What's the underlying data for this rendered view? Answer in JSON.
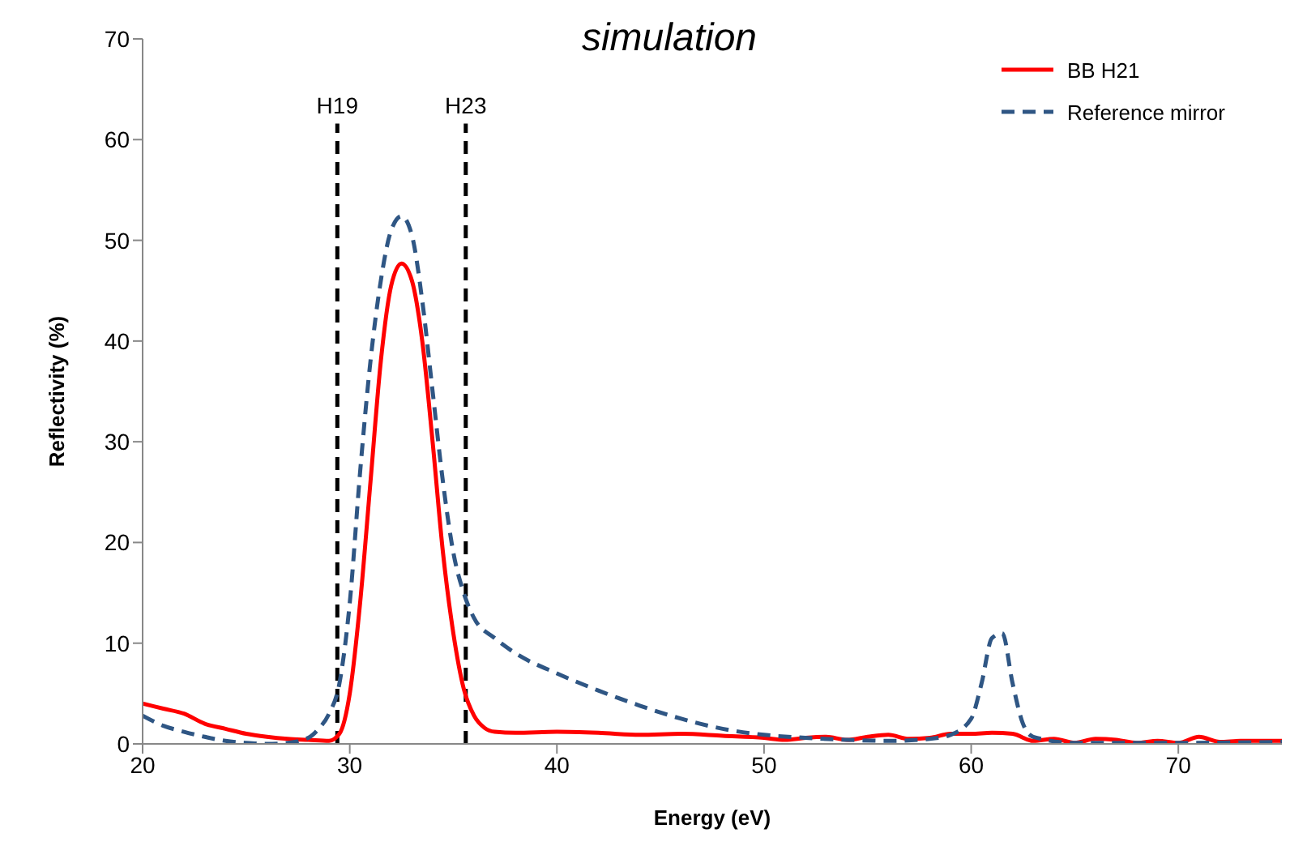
{
  "chart_data": {
    "type": "line",
    "title": "simulation",
    "xlabel": "Energy (eV)",
    "ylabel": "Reflectivity (%)",
    "xlim": [
      20,
      75
    ],
    "xticks": [
      20,
      30,
      40,
      50,
      60,
      70
    ],
    "ylim": [
      0,
      70
    ],
    "yticks": [
      0,
      10,
      20,
      30,
      40,
      50,
      60,
      70
    ],
    "grid": false,
    "legend": "top right",
    "marker": "none",
    "series": [
      {
        "name": "BB H21",
        "color": "#ff0000",
        "line_style": "solid",
        "x": [
          20,
          21,
          22,
          23,
          24,
          25,
          26,
          27,
          28,
          29,
          29.5,
          30,
          30.5,
          31,
          31.5,
          32,
          32.5,
          33,
          33.5,
          34,
          34.5,
          35,
          35.5,
          36,
          36.5,
          37,
          38,
          40,
          42,
          44,
          46,
          48,
          50,
          51,
          52,
          53,
          54,
          55,
          56,
          57,
          58,
          59,
          60,
          61,
          62,
          63,
          64,
          65,
          66,
          67,
          68,
          69,
          70,
          71,
          72,
          73,
          75
        ],
        "values": [
          4,
          3.5,
          3,
          2,
          1.5,
          1,
          0.7,
          0.5,
          0.4,
          0.3,
          1,
          5,
          14,
          26,
          38,
          45.5,
          47.7,
          46,
          40,
          30,
          19,
          11,
          5.5,
          2.8,
          1.6,
          1.2,
          1.1,
          1.2,
          1.1,
          0.9,
          1,
          0.8,
          0.6,
          0.4,
          0.6,
          0.7,
          0.4,
          0.7,
          0.9,
          0.5,
          0.6,
          1,
          1,
          1.1,
          1,
          0.3,
          0.5,
          0.1,
          0.5,
          0.4,
          0.1,
          0.3,
          0.1,
          0.7,
          0.2,
          0.3,
          0.3
        ]
      },
      {
        "name": "Reference mirror",
        "color": "#2f5684",
        "line_style": "dashed",
        "x": [
          20,
          21,
          22,
          23,
          24,
          25,
          26,
          27,
          28,
          28.5,
          29,
          29.5,
          30,
          30.5,
          31,
          31.5,
          32,
          32.5,
          33,
          33.5,
          34,
          34.5,
          35,
          35.5,
          36,
          37,
          38,
          40,
          42,
          44,
          46,
          48,
          50,
          52,
          54,
          56,
          58,
          59,
          60,
          60.5,
          61,
          61.5,
          62,
          62.5,
          63,
          65,
          70,
          75
        ],
        "values": [
          2.8,
          1.8,
          1.2,
          0.7,
          0.3,
          0.1,
          0,
          0.1,
          0.6,
          1.5,
          3,
          6,
          14,
          27,
          38,
          46,
          51,
          52.4,
          50.5,
          44,
          35,
          26,
          19,
          15,
          12.5,
          10.5,
          9,
          7,
          5.3,
          3.8,
          2.5,
          1.5,
          0.9,
          0.6,
          0.4,
          0.3,
          0.5,
          0.9,
          2.5,
          6,
          10.5,
          11,
          6,
          2,
          0.7,
          0.1,
          0.1,
          0.2
        ]
      }
    ],
    "ref_lines": [
      {
        "axis": "x",
        "value": 29.4,
        "label": "H19",
        "color": "#000000",
        "line_style": "dashed"
      },
      {
        "axis": "x",
        "value": 35.6,
        "label": "H23",
        "color": "#000000",
        "line_style": "dashed"
      }
    ]
  }
}
